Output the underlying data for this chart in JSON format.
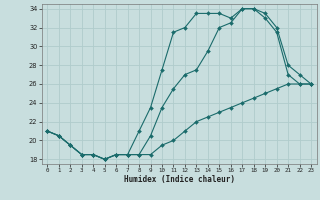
{
  "xlabel": "Humidex (Indice chaleur)",
  "xlim": [
    -0.5,
    23.5
  ],
  "ylim": [
    17.5,
    34.5
  ],
  "xticks": [
    0,
    1,
    2,
    3,
    4,
    5,
    6,
    7,
    8,
    9,
    10,
    11,
    12,
    13,
    14,
    15,
    16,
    17,
    18,
    19,
    20,
    21,
    22,
    23
  ],
  "yticks": [
    18,
    20,
    22,
    24,
    26,
    28,
    30,
    32,
    34
  ],
  "background_color": "#c8dede",
  "grid_color": "#b0cccc",
  "line_color": "#1a6b6b",
  "line1_x": [
    0,
    1,
    2,
    3,
    4,
    5,
    6,
    7,
    8,
    9,
    10,
    11,
    12,
    13,
    14,
    15,
    16,
    17,
    18,
    19,
    20,
    21,
    22,
    23
  ],
  "line1_y": [
    21,
    20.5,
    19.5,
    18.5,
    18.5,
    18,
    18.5,
    18.5,
    21,
    23.5,
    27.5,
    31.5,
    32,
    33.5,
    33.5,
    33.5,
    33,
    34,
    34,
    33,
    31.5,
    27,
    26,
    26
  ],
  "line2_x": [
    0,
    1,
    2,
    3,
    4,
    5,
    6,
    7,
    8,
    9,
    10,
    11,
    12,
    13,
    14,
    15,
    16,
    17,
    18,
    19,
    20,
    21,
    22,
    23
  ],
  "line2_y": [
    21,
    20.5,
    19.5,
    18.5,
    18.5,
    18,
    18.5,
    18.5,
    18.5,
    20.5,
    23.5,
    25.5,
    27,
    27.5,
    29.5,
    32,
    32.5,
    34,
    34,
    33.5,
    32,
    28,
    27,
    26
  ],
  "line3_x": [
    0,
    1,
    2,
    3,
    4,
    5,
    6,
    7,
    8,
    9,
    10,
    11,
    12,
    13,
    14,
    15,
    16,
    17,
    18,
    19,
    20,
    21,
    22,
    23
  ],
  "line3_y": [
    21,
    20.5,
    19.5,
    18.5,
    18.5,
    18,
    18.5,
    18.5,
    18.5,
    18.5,
    19.5,
    20,
    21,
    22,
    22.5,
    23,
    23.5,
    24,
    24.5,
    25,
    25.5,
    26,
    26,
    26
  ]
}
